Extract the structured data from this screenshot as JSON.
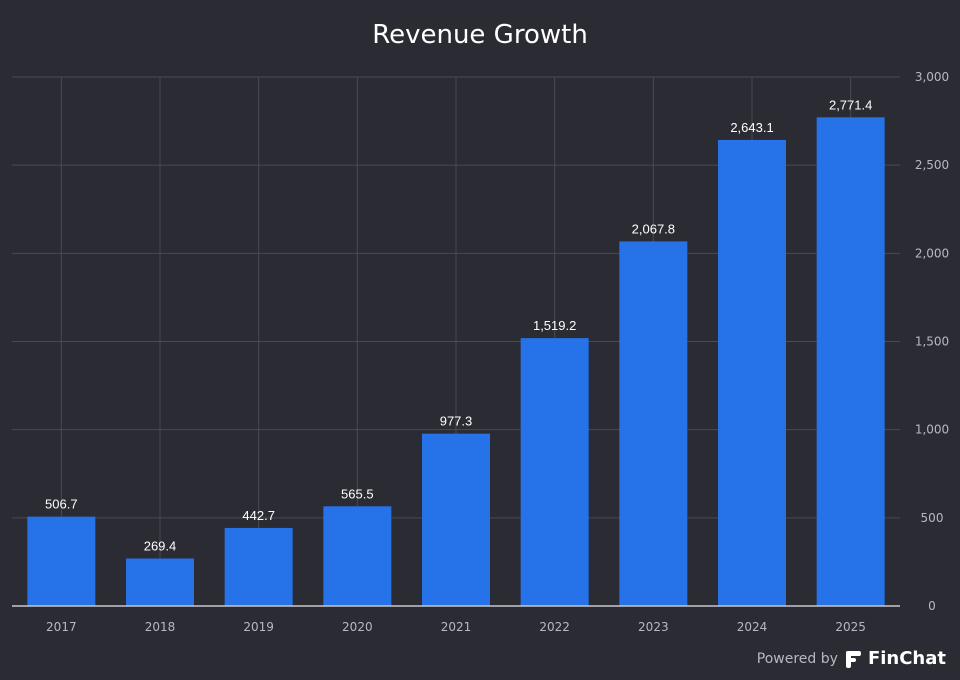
{
  "chart_data": {
    "type": "bar",
    "title": "Revenue Growth",
    "categories": [
      "2017",
      "2018",
      "2019",
      "2020",
      "2021",
      "2022",
      "2023",
      "2024",
      "2025"
    ],
    "values": [
      506.7,
      269.4,
      442.7,
      565.5,
      977.3,
      1519.2,
      2067.8,
      2643.1,
      2771.4
    ],
    "data_labels": [
      "506.7",
      "269.4",
      "442.7",
      "565.5",
      "977.3",
      "1,519.2",
      "2,067.8",
      "2,643.1",
      "2,771.4"
    ],
    "xlabel": "",
    "ylabel": "",
    "ylim": [
      0,
      3000
    ],
    "yticks": [
      0,
      500,
      1000,
      1500,
      2000,
      2500,
      3000
    ],
    "ytick_labels": [
      "0",
      "500",
      "1,000",
      "1,500",
      "2,000",
      "2,500",
      "3,000"
    ],
    "y_axis_side": "right",
    "grid": true,
    "bar_color": "#2672e8",
    "background_color": "#2b2b33"
  },
  "footer": {
    "powered_by": "Powered by",
    "brand": "FinChat"
  }
}
